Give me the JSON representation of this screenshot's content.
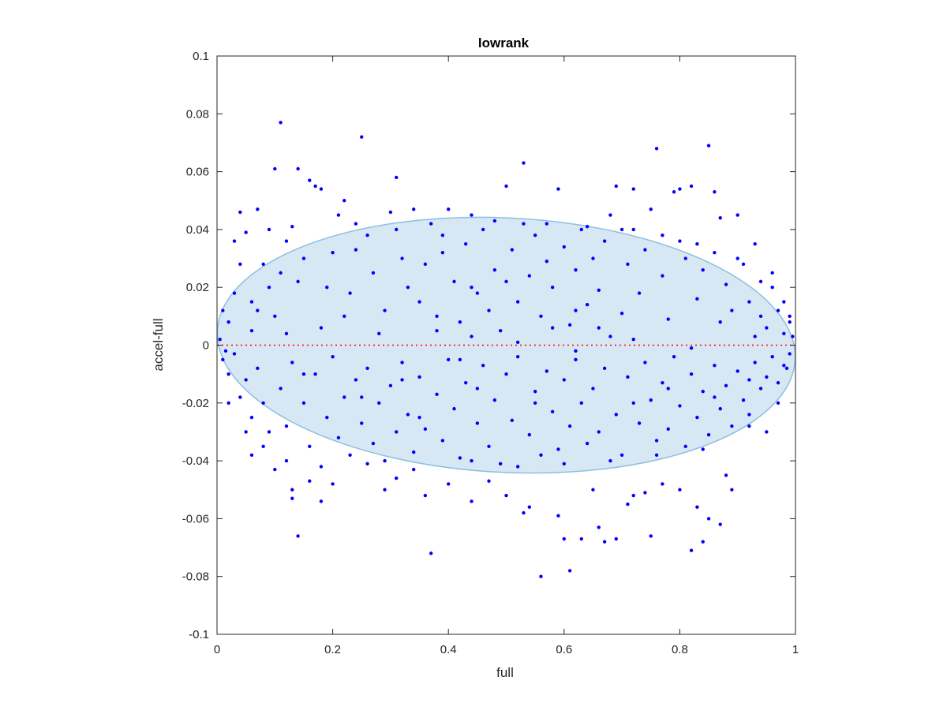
{
  "chart_data": {
    "type": "scatter",
    "title": "lowrank",
    "xlabel": "full",
    "ylabel": "accel-full",
    "xlim": [
      0,
      1
    ],
    "ylim": [
      -0.1,
      0.1
    ],
    "x_ticks": [
      0,
      0.2,
      0.4,
      0.6,
      0.8,
      1
    ],
    "x_tick_labels": [
      "0",
      "0.2",
      "0.4",
      "0.6",
      "0.8",
      "1"
    ],
    "y_ticks": [
      -0.1,
      -0.08,
      -0.06,
      -0.04,
      -0.02,
      0,
      0.02,
      0.04,
      0.06,
      0.08,
      0.1
    ],
    "y_tick_labels": [
      "-0.1",
      "-0.08",
      "-0.06",
      "-0.04",
      "-0.02",
      "0",
      "0.02",
      "0.04",
      "0.06",
      "0.08",
      "0.1"
    ],
    "grid": false,
    "colors": {
      "points": "#0000ff",
      "ellipse_fill": "#d7e8f4",
      "ellipse_edge": "#8ebfe0",
      "reference_line": "#ff0000",
      "axes": "#262626"
    },
    "ellipse": {
      "center": [
        0.5,
        0.0
      ],
      "x_radius": 0.5,
      "y_radius": 0.044,
      "tilt_data_per_x": -0.01
    },
    "reference_line": {
      "y": 0,
      "style": "dotted"
    },
    "series": [
      {
        "points": [
          [
            0.11,
            0.077
          ],
          [
            0.25,
            0.072
          ],
          [
            0.53,
            0.063
          ],
          [
            0.76,
            0.068
          ],
          [
            0.85,
            0.069
          ],
          [
            0.1,
            0.061
          ],
          [
            0.14,
            0.061
          ],
          [
            0.31,
            0.058
          ],
          [
            0.16,
            0.057
          ],
          [
            0.17,
            0.055
          ],
          [
            0.18,
            0.054
          ],
          [
            0.5,
            0.055
          ],
          [
            0.59,
            0.054
          ],
          [
            0.69,
            0.055
          ],
          [
            0.72,
            0.054
          ],
          [
            0.79,
            0.053
          ],
          [
            0.8,
            0.054
          ],
          [
            0.82,
            0.055
          ],
          [
            0.86,
            0.053
          ],
          [
            0.04,
            0.046
          ],
          [
            0.07,
            0.047
          ],
          [
            0.13,
            0.041
          ],
          [
            0.21,
            0.045
          ],
          [
            0.22,
            0.05
          ],
          [
            0.24,
            0.042
          ],
          [
            0.3,
            0.046
          ],
          [
            0.34,
            0.047
          ],
          [
            0.4,
            0.047
          ],
          [
            0.44,
            0.045
          ],
          [
            0.68,
            0.045
          ],
          [
            0.75,
            0.047
          ],
          [
            0.87,
            0.044
          ],
          [
            0.9,
            0.045
          ],
          [
            0.93,
            0.035
          ],
          [
            0.05,
            0.039
          ],
          [
            0.09,
            0.04
          ],
          [
            0.96,
            0.02
          ],
          [
            0.03,
            0.036
          ],
          [
            0.12,
            0.036
          ],
          [
            0.08,
            0.028
          ],
          [
            0.15,
            0.03
          ],
          [
            0.19,
            0.02
          ],
          [
            0.2,
            0.032
          ],
          [
            0.23,
            0.018
          ],
          [
            0.27,
            0.025
          ],
          [
            0.29,
            0.012
          ],
          [
            0.32,
            0.03
          ],
          [
            0.33,
            0.02
          ],
          [
            0.35,
            0.015
          ],
          [
            0.36,
            0.028
          ],
          [
            0.38,
            0.01
          ],
          [
            0.39,
            0.032
          ],
          [
            0.41,
            0.022
          ],
          [
            0.42,
            0.008
          ],
          [
            0.43,
            0.035
          ],
          [
            0.45,
            0.018
          ],
          [
            0.46,
            0.04
          ],
          [
            0.47,
            0.012
          ],
          [
            0.48,
            0.026
          ],
          [
            0.49,
            0.005
          ],
          [
            0.51,
            0.033
          ],
          [
            0.52,
            0.015
          ],
          [
            0.54,
            0.024
          ],
          [
            0.55,
            0.038
          ],
          [
            0.56,
            0.01
          ],
          [
            0.57,
            0.029
          ],
          [
            0.58,
            0.02
          ],
          [
            0.6,
            0.034
          ],
          [
            0.61,
            0.007
          ],
          [
            0.62,
            0.026
          ],
          [
            0.63,
            0.04
          ],
          [
            0.64,
            0.014
          ],
          [
            0.65,
            0.03
          ],
          [
            0.66,
            0.019
          ],
          [
            0.67,
            0.036
          ],
          [
            0.7,
            0.011
          ],
          [
            0.71,
            0.028
          ],
          [
            0.73,
            0.018
          ],
          [
            0.74,
            0.033
          ],
          [
            0.77,
            0.024
          ],
          [
            0.78,
            0.009
          ],
          [
            0.81,
            0.03
          ],
          [
            0.83,
            0.016
          ],
          [
            0.84,
            0.026
          ],
          [
            0.88,
            0.021
          ],
          [
            0.89,
            0.012
          ],
          [
            0.91,
            0.028
          ],
          [
            0.92,
            0.015
          ],
          [
            0.94,
            0.01
          ],
          [
            0.95,
            0.006
          ],
          [
            0.97,
            0.012
          ],
          [
            0.98,
            0.004
          ],
          [
            0.99,
            0.008
          ],
          [
            0.01,
            0.012
          ],
          [
            0.02,
            0.008
          ],
          [
            0.06,
            0.015
          ],
          [
            0.1,
            0.01
          ],
          [
            0.14,
            0.022
          ],
          [
            0.18,
            0.006
          ],
          [
            0.26,
            0.038
          ],
          [
            0.28,
            0.004
          ],
          [
            0.37,
            0.042
          ],
          [
            0.44,
            0.003
          ],
          [
            0.53,
            0.042
          ],
          [
            0.68,
            0.003
          ],
          [
            0.72,
            0.04
          ],
          [
            0.8,
            0.036
          ],
          [
            0.86,
            0.032
          ],
          [
            0.9,
            0.03
          ],
          [
            0.01,
            -0.005
          ],
          [
            0.02,
            -0.01
          ],
          [
            0.03,
            -0.003
          ],
          [
            0.04,
            -0.018
          ],
          [
            0.05,
            -0.012
          ],
          [
            0.06,
            -0.025
          ],
          [
            0.07,
            -0.008
          ],
          [
            0.08,
            -0.02
          ],
          [
            0.09,
            -0.03
          ],
          [
            0.11,
            -0.015
          ],
          [
            0.12,
            -0.028
          ],
          [
            0.13,
            -0.006
          ],
          [
            0.15,
            -0.02
          ],
          [
            0.16,
            -0.035
          ],
          [
            0.17,
            -0.01
          ],
          [
            0.19,
            -0.025
          ],
          [
            0.2,
            -0.004
          ],
          [
            0.21,
            -0.032
          ],
          [
            0.22,
            -0.018
          ],
          [
            0.23,
            -0.038
          ],
          [
            0.24,
            -0.012
          ],
          [
            0.25,
            -0.027
          ],
          [
            0.26,
            -0.008
          ],
          [
            0.27,
            -0.034
          ],
          [
            0.28,
            -0.02
          ],
          [
            0.29,
            -0.04
          ],
          [
            0.3,
            -0.014
          ],
          [
            0.31,
            -0.03
          ],
          [
            0.32,
            -0.006
          ],
          [
            0.33,
            -0.024
          ],
          [
            0.34,
            -0.037
          ],
          [
            0.35,
            -0.011
          ],
          [
            0.36,
            -0.029
          ],
          [
            0.38,
            -0.017
          ],
          [
            0.39,
            -0.033
          ],
          [
            0.4,
            -0.005
          ],
          [
            0.41,
            -0.022
          ],
          [
            0.42,
            -0.039
          ],
          [
            0.43,
            -0.013
          ],
          [
            0.45,
            -0.027
          ],
          [
            0.46,
            -0.007
          ],
          [
            0.47,
            -0.035
          ],
          [
            0.48,
            -0.019
          ],
          [
            0.49,
            -0.041
          ],
          [
            0.5,
            -0.01
          ],
          [
            0.51,
            -0.026
          ],
          [
            0.52,
            -0.004
          ],
          [
            0.54,
            -0.031
          ],
          [
            0.55,
            -0.016
          ],
          [
            0.56,
            -0.038
          ],
          [
            0.57,
            -0.009
          ],
          [
            0.58,
            -0.023
          ],
          [
            0.59,
            -0.036
          ],
          [
            0.6,
            -0.012
          ],
          [
            0.61,
            -0.028
          ],
          [
            0.62,
            -0.005
          ],
          [
            0.63,
            -0.02
          ],
          [
            0.64,
            -0.034
          ],
          [
            0.65,
            -0.015
          ],
          [
            0.66,
            -0.03
          ],
          [
            0.67,
            -0.008
          ],
          [
            0.69,
            -0.024
          ],
          [
            0.7,
            -0.038
          ],
          [
            0.71,
            -0.011
          ],
          [
            0.73,
            -0.027
          ],
          [
            0.74,
            -0.006
          ],
          [
            0.75,
            -0.019
          ],
          [
            0.76,
            -0.033
          ],
          [
            0.77,
            -0.013
          ],
          [
            0.78,
            -0.029
          ],
          [
            0.79,
            -0.004
          ],
          [
            0.8,
            -0.021
          ],
          [
            0.81,
            -0.035
          ],
          [
            0.82,
            -0.01
          ],
          [
            0.83,
            -0.025
          ],
          [
            0.84,
            -0.016
          ],
          [
            0.85,
            -0.031
          ],
          [
            0.86,
            -0.007
          ],
          [
            0.87,
            -0.022
          ],
          [
            0.88,
            -0.014
          ],
          [
            0.89,
            -0.028
          ],
          [
            0.9,
            -0.009
          ],
          [
            0.91,
            -0.019
          ],
          [
            0.92,
            -0.024
          ],
          [
            0.93,
            -0.006
          ],
          [
            0.94,
            -0.015
          ],
          [
            0.95,
            -0.011
          ],
          [
            0.96,
            -0.004
          ],
          [
            0.97,
            -0.013
          ],
          [
            0.98,
            -0.007
          ],
          [
            0.99,
            -0.003
          ],
          [
            0.02,
            -0.02
          ],
          [
            0.05,
            -0.03
          ],
          [
            0.08,
            -0.035
          ],
          [
            0.12,
            -0.04
          ],
          [
            0.18,
            -0.042
          ],
          [
            0.26,
            -0.041
          ],
          [
            0.34,
            -0.043
          ],
          [
            0.44,
            -0.04
          ],
          [
            0.52,
            -0.042
          ],
          [
            0.6,
            -0.041
          ],
          [
            0.68,
            -0.04
          ],
          [
            0.76,
            -0.038
          ],
          [
            0.84,
            -0.036
          ],
          [
            0.92,
            -0.028
          ],
          [
            0.1,
            -0.043
          ],
          [
            0.13,
            -0.05
          ],
          [
            0.16,
            -0.047
          ],
          [
            0.18,
            -0.054
          ],
          [
            0.2,
            -0.048
          ],
          [
            0.29,
            -0.05
          ],
          [
            0.31,
            -0.046
          ],
          [
            0.36,
            -0.052
          ],
          [
            0.37,
            -0.072
          ],
          [
            0.4,
            -0.048
          ],
          [
            0.44,
            -0.054
          ],
          [
            0.47,
            -0.047
          ],
          [
            0.5,
            -0.052
          ],
          [
            0.53,
            -0.058
          ],
          [
            0.54,
            -0.056
          ],
          [
            0.56,
            -0.08
          ],
          [
            0.59,
            -0.059
          ],
          [
            0.6,
            -0.067
          ],
          [
            0.61,
            -0.078
          ],
          [
            0.63,
            -0.067
          ],
          [
            0.65,
            -0.05
          ],
          [
            0.66,
            -0.063
          ],
          [
            0.67,
            -0.068
          ],
          [
            0.69,
            -0.067
          ],
          [
            0.71,
            -0.055
          ],
          [
            0.72,
            -0.052
          ],
          [
            0.74,
            -0.051
          ],
          [
            0.75,
            -0.066
          ],
          [
            0.77,
            -0.048
          ],
          [
            0.8,
            -0.05
          ],
          [
            0.82,
            -0.071
          ],
          [
            0.83,
            -0.056
          ],
          [
            0.84,
            -0.068
          ],
          [
            0.85,
            -0.06
          ],
          [
            0.87,
            -0.062
          ],
          [
            0.88,
            -0.045
          ],
          [
            0.89,
            -0.05
          ],
          [
            0.14,
            -0.066
          ],
          [
            0.13,
            -0.053
          ],
          [
            0.06,
            -0.038
          ],
          [
            0.95,
            -0.03
          ],
          [
            0.97,
            -0.02
          ],
          [
            0.94,
            0.022
          ],
          [
            0.96,
            0.025
          ],
          [
            0.98,
            0.015
          ],
          [
            0.99,
            0.01
          ],
          [
            0.985,
            -0.008
          ],
          [
            0.995,
            0.003
          ],
          [
            0.005,
            0.002
          ],
          [
            0.015,
            -0.002
          ],
          [
            0.03,
            0.018
          ],
          [
            0.04,
            0.028
          ],
          [
            0.06,
            0.005
          ],
          [
            0.07,
            0.012
          ],
          [
            0.09,
            0.02
          ],
          [
            0.11,
            0.025
          ],
          [
            0.24,
            0.033
          ],
          [
            0.31,
            0.04
          ],
          [
            0.39,
            0.038
          ],
          [
            0.48,
            0.043
          ],
          [
            0.57,
            0.042
          ],
          [
            0.64,
            0.041
          ],
          [
            0.7,
            0.04
          ],
          [
            0.77,
            0.038
          ],
          [
            0.83,
            0.035
          ],
          [
            0.44,
            0.02
          ],
          [
            0.5,
            0.022
          ],
          [
            0.58,
            0.006
          ],
          [
            0.62,
            0.012
          ],
          [
            0.66,
            0.006
          ],
          [
            0.55,
            -0.02
          ],
          [
            0.45,
            -0.015
          ],
          [
            0.35,
            -0.025
          ],
          [
            0.25,
            -0.018
          ],
          [
            0.15,
            -0.01
          ],
          [
            0.72,
            -0.02
          ],
          [
            0.78,
            -0.015
          ],
          [
            0.86,
            -0.018
          ],
          [
            0.92,
            -0.012
          ],
          [
            0.38,
            0.005
          ],
          [
            0.42,
            -0.005
          ],
          [
            0.52,
            0.001
          ],
          [
            0.62,
            -0.002
          ],
          [
            0.72,
            0.002
          ],
          [
            0.82,
            -0.001
          ],
          [
            0.22,
            0.01
          ],
          [
            0.32,
            -0.012
          ],
          [
            0.12,
            0.004
          ],
          [
            0.87,
            0.008
          ],
          [
            0.93,
            0.003
          ]
        ]
      }
    ]
  }
}
